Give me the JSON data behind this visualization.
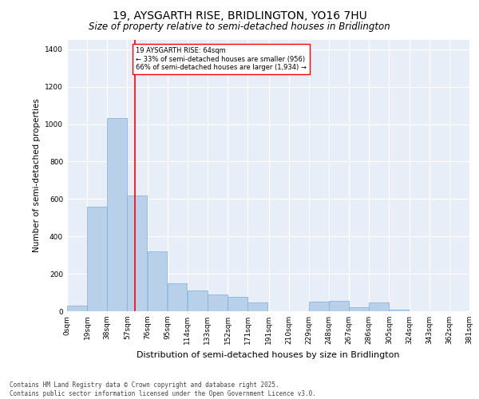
{
  "title1": "19, AYSGARTH RISE, BRIDLINGTON, YO16 7HU",
  "title2": "Size of property relative to semi-detached houses in Bridlington",
  "xlabel": "Distribution of semi-detached houses by size in Bridlington",
  "ylabel": "Number of semi-detached properties",
  "bar_color": "#b8d0ea",
  "bar_edge_color": "#7aaed6",
  "bg_color": "#e8eef8",
  "grid_color": "#ffffff",
  "vline_x": 64,
  "vline_color": "red",
  "annotation_text": "19 AYSGARTH RISE: 64sqm\n← 33% of semi-detached houses are smaller (956)\n66% of semi-detached houses are larger (1,934) →",
  "annotation_box_color": "white",
  "annotation_box_edge": "red",
  "bin_edges": [
    0,
    19,
    38,
    57,
    76,
    95,
    114,
    133,
    152,
    171,
    191,
    210,
    229,
    248,
    267,
    286,
    305,
    324,
    343,
    362,
    381
  ],
  "bin_labels": [
    "0sqm",
    "19sqm",
    "38sqm",
    "57sqm",
    "76sqm",
    "95sqm",
    "114sqm",
    "133sqm",
    "152sqm",
    "171sqm",
    "191sqm",
    "210sqm",
    "229sqm",
    "248sqm",
    "267sqm",
    "286sqm",
    "305sqm",
    "324sqm",
    "343sqm",
    "362sqm",
    "381sqm"
  ],
  "bar_heights": [
    30,
    560,
    1030,
    620,
    320,
    150,
    110,
    90,
    75,
    45,
    0,
    0,
    50,
    55,
    20,
    45,
    10,
    0,
    0,
    0
  ],
  "ylim": [
    0,
    1450
  ],
  "yticks": [
    0,
    200,
    400,
    600,
    800,
    1000,
    1200,
    1400
  ],
  "footnote": "Contains HM Land Registry data © Crown copyright and database right 2025.\nContains public sector information licensed under the Open Government Licence v3.0.",
  "title1_fontsize": 10,
  "title2_fontsize": 8.5,
  "label_fontsize": 7.5,
  "tick_fontsize": 6.5,
  "footnote_fontsize": 5.5
}
